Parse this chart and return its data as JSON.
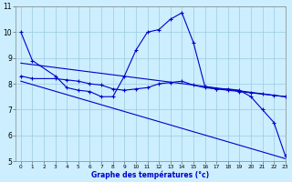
{
  "xlabel": "Graphe des températures (°c)",
  "bg_color": "#cceeff",
  "line_color": "#0000cc",
  "grid_color": "#99ccdd",
  "xlim": [
    -0.5,
    23
  ],
  "ylim": [
    5,
    11
  ],
  "xticks": [
    0,
    1,
    2,
    3,
    4,
    5,
    6,
    7,
    8,
    9,
    10,
    11,
    12,
    13,
    14,
    15,
    16,
    17,
    18,
    19,
    20,
    21,
    22,
    23
  ],
  "yticks": [
    5,
    6,
    7,
    8,
    9,
    10,
    11
  ],
  "line1_x": [
    0,
    1,
    3,
    4,
    5,
    6,
    7,
    8,
    9,
    10,
    11,
    12,
    13,
    14,
    15,
    16,
    17,
    18,
    19,
    20,
    21,
    22,
    23
  ],
  "line1_y": [
    10.0,
    8.9,
    8.3,
    7.85,
    7.75,
    7.7,
    7.5,
    7.5,
    8.3,
    9.3,
    10.0,
    10.1,
    10.5,
    10.75,
    9.6,
    7.9,
    7.8,
    7.8,
    7.75,
    7.5,
    7.0,
    6.5,
    5.2
  ],
  "line2_x": [
    0,
    1,
    3,
    4,
    5,
    6,
    7,
    8,
    9,
    10,
    11,
    12,
    13,
    14,
    15,
    16,
    17,
    18,
    19,
    20,
    21,
    22,
    23
  ],
  "line2_y": [
    8.3,
    8.2,
    8.2,
    8.15,
    8.1,
    8.0,
    7.95,
    7.8,
    7.75,
    7.8,
    7.85,
    8.0,
    8.05,
    8.1,
    7.95,
    7.85,
    7.8,
    7.75,
    7.7,
    7.65,
    7.6,
    7.55,
    7.5
  ],
  "line3_x": [
    0,
    23
  ],
  "line3_y": [
    8.8,
    7.5
  ],
  "line4_x": [
    0,
    23
  ],
  "line4_y": [
    8.1,
    5.1
  ]
}
